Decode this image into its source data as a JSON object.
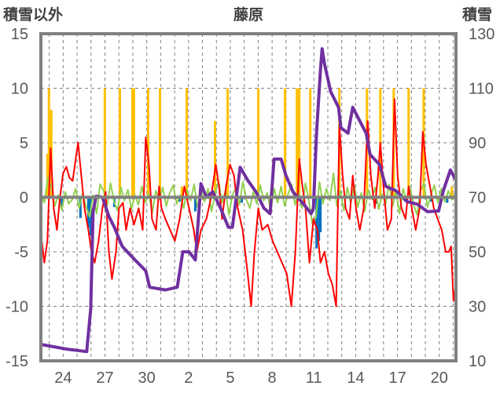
{
  "chart_data": {
    "type": "line",
    "title": "藤原",
    "left_axis_label": "積雪以外",
    "right_axis_label": "積雪",
    "ylim_left": [
      -15,
      15
    ],
    "yticks_left": [
      15,
      10,
      5,
      0,
      -5,
      -10,
      -15
    ],
    "ylim_right": [
      10,
      130
    ],
    "yticks_right": [
      130,
      110,
      90,
      70,
      50,
      30,
      10
    ],
    "xlim_days": [
      -1.6,
      28.2
    ],
    "xticks": [
      {
        "day": 0,
        "label": "24"
      },
      {
        "day": 3,
        "label": "27"
      },
      {
        "day": 6,
        "label": "30"
      },
      {
        "day": 9,
        "label": "2"
      },
      {
        "day": 12,
        "label": "5"
      },
      {
        "day": 15,
        "label": "8"
      },
      {
        "day": 18,
        "label": "11"
      },
      {
        "day": 21,
        "label": "14"
      },
      {
        "day": 24,
        "label": "17"
      },
      {
        "day": 27,
        "label": "20"
      }
    ],
    "grid": true,
    "colors": {
      "precip": "#FFC000",
      "snow_change": "#0070C0",
      "temp": "#FF0000",
      "other": "#92D050",
      "snow_depth": "#7030A0",
      "axis": "#808080"
    },
    "series": [
      {
        "name": "bars-yellow",
        "axis": "left",
        "kind": "bar",
        "color": "#FFC000",
        "points": [
          [
            -1.13,
            4
          ],
          [
            -1.02,
            10
          ],
          [
            -0.85,
            8
          ],
          [
            2.99,
            10
          ],
          [
            4.07,
            10
          ],
          [
            4.97,
            10
          ],
          [
            5.08,
            10
          ],
          [
            6.1,
            10
          ],
          [
            6.95,
            10
          ],
          [
            8.52,
            1
          ],
          [
            8.87,
            10
          ],
          [
            10.9,
            7
          ],
          [
            11.81,
            10
          ],
          [
            14.01,
            10
          ],
          [
            15.93,
            10
          ],
          [
            16.78,
            10
          ],
          [
            16.95,
            10
          ],
          [
            17.74,
            10
          ],
          [
            19.83,
            10
          ],
          [
            21.81,
            10
          ],
          [
            22.77,
            10
          ],
          [
            23.73,
            10
          ],
          [
            24.8,
            10
          ],
          [
            25.88,
            10
          ],
          [
            27.9,
            1
          ]
        ]
      },
      {
        "name": "bars-blue",
        "axis": "left",
        "kind": "bar",
        "color": "#0070C0",
        "points": [
          [
            -0.11,
            -0.9
          ],
          [
            1.24,
            -1.9
          ],
          [
            1.81,
            -2.8
          ],
          [
            1.98,
            -3.5
          ],
          [
            3.67,
            -0.9
          ],
          [
            8.36,
            -0.4
          ],
          [
            9.49,
            -1.3
          ],
          [
            12.82,
            -0.5
          ],
          [
            18.19,
            -4.7
          ],
          [
            18.36,
            -4
          ],
          [
            18.47,
            -3.2
          ],
          [
            20.62,
            -0.3
          ],
          [
            22.49,
            -0.6
          ],
          [
            26.38,
            -0.4
          ],
          [
            27.57,
            -0.5
          ]
        ]
      },
      {
        "name": "line-green",
        "axis": "left",
        "kind": "line",
        "color": "#92D050",
        "t0": -1.6,
        "step": 0.25,
        "values": [
          0.3,
          -0.5,
          1.8,
          1.0,
          -0.8,
          0.2,
          -1.2,
          0.5,
          -0.6,
          -0.2,
          0.8,
          -1.0,
          0.4,
          -0.9,
          -1.8,
          0.2,
          -1.5,
          1.2,
          0.6,
          -0.8,
          1.3,
          -0.4,
          -1.2,
          0.9,
          -0.3,
          0.7,
          -1.1,
          0.2,
          -0.7,
          1.0,
          -0.5,
          0.3,
          -1.4,
          0.6,
          -0.2,
          0.9,
          -0.8,
          0.4,
          1.1,
          -0.6,
          0.2,
          -1.0,
          0.7,
          -0.3,
          1.2,
          -0.9,
          0.5,
          -0.4,
          0.8,
          -1.3,
          0.3,
          1.5,
          -0.5,
          0.6,
          -1.6,
          0.2,
          0.9,
          -0.7,
          1.4,
          -0.2,
          -1.0,
          0.5,
          -0.6,
          1.1,
          -0.3,
          0.4,
          -1.2,
          0.8,
          -0.5,
          1.0,
          -0.8,
          0.3,
          1.2,
          -0.7,
          0.5,
          -1.0,
          1.3,
          -0.4,
          -2.5,
          -1.8,
          1.4,
          -0.6,
          0.8,
          -0.3,
          2.2,
          -0.8,
          0.6,
          -1.2,
          0.9,
          -0.5,
          1.1,
          -0.9,
          0.4,
          -1.3,
          0.7,
          -0.2,
          0.9,
          -1.1,
          0.3,
          -0.6,
          1.2,
          -0.8,
          0.5,
          -1.5,
          0.8,
          -0.3,
          1.0,
          -0.7,
          -1.6,
          0.6,
          1.3,
          -0.9,
          0.2,
          1.1,
          -0.5,
          0.8,
          -0.4,
          0.6,
          -0.2,
          0.4
        ]
      },
      {
        "name": "line-red",
        "axis": "left",
        "kind": "line",
        "color": "#FF0000",
        "points": [
          [
            -1.58,
            -3.5
          ],
          [
            -1.36,
            -6
          ],
          [
            -1.13,
            -4
          ],
          [
            -0.9,
            4.5
          ],
          [
            -0.68,
            -1
          ],
          [
            -0.45,
            -3
          ],
          [
            -0.23,
            0
          ],
          [
            0,
            2.2
          ],
          [
            0.23,
            2.8
          ],
          [
            0.45,
            1.8
          ],
          [
            0.68,
            1.5
          ],
          [
            0.9,
            3.5
          ],
          [
            1.07,
            5
          ],
          [
            1.3,
            2
          ],
          [
            1.53,
            -1
          ],
          [
            1.81,
            -3
          ],
          [
            2.03,
            -5
          ],
          [
            2.26,
            -6
          ],
          [
            2.54,
            -4
          ],
          [
            2.82,
            -1
          ],
          [
            3.05,
            0.5
          ],
          [
            3.28,
            -5
          ],
          [
            3.5,
            -7.5
          ],
          [
            3.79,
            -5
          ],
          [
            4.01,
            -1
          ],
          [
            4.29,
            -0.5
          ],
          [
            4.52,
            -3
          ],
          [
            4.8,
            -1
          ],
          [
            5.08,
            -2.5
          ],
          [
            5.42,
            -1
          ],
          [
            5.71,
            -3
          ],
          [
            5.93,
            5.5
          ],
          [
            6.16,
            3
          ],
          [
            6.38,
            -2
          ],
          [
            6.67,
            -3
          ],
          [
            6.89,
            1
          ],
          [
            7.06,
            -1
          ],
          [
            7.34,
            -2
          ],
          [
            7.68,
            -3
          ],
          [
            8.02,
            -4
          ],
          [
            8.36,
            -2
          ],
          [
            8.7,
            1
          ],
          [
            9.04,
            -1
          ],
          [
            9.38,
            -3
          ],
          [
            9.6,
            -5
          ],
          [
            9.89,
            -3
          ],
          [
            10.28,
            -2
          ],
          [
            10.62,
            0
          ],
          [
            10.96,
            3
          ],
          [
            11.19,
            1
          ],
          [
            11.41,
            -2
          ],
          [
            11.69,
            1
          ],
          [
            11.98,
            3
          ],
          [
            12.26,
            2
          ],
          [
            12.54,
            -1
          ],
          [
            12.88,
            -3
          ],
          [
            13.16,
            -6
          ],
          [
            13.5,
            -10
          ],
          [
            13.73,
            -5
          ],
          [
            14.01,
            -1
          ],
          [
            14.29,
            -3
          ],
          [
            14.69,
            -2.5
          ],
          [
            15.03,
            -4
          ],
          [
            15.37,
            -5
          ],
          [
            15.71,
            -6
          ],
          [
            16.05,
            -7
          ],
          [
            16.38,
            -10
          ],
          [
            16.67,
            -5
          ],
          [
            16.95,
            3.5
          ],
          [
            17.18,
            1
          ],
          [
            17.4,
            -1
          ],
          [
            17.68,
            -6
          ],
          [
            17.97,
            -2
          ],
          [
            18.25,
            -3
          ],
          [
            18.47,
            -6
          ],
          [
            18.76,
            -5
          ],
          [
            19.04,
            -7
          ],
          [
            19.32,
            -8
          ],
          [
            19.6,
            -10
          ],
          [
            19.83,
            6.7
          ],
          [
            20.06,
            2
          ],
          [
            20.28,
            -1
          ],
          [
            20.56,
            -2
          ],
          [
            20.79,
            2
          ],
          [
            21.02,
            -1
          ],
          [
            21.3,
            -3
          ],
          [
            21.58,
            -1
          ],
          [
            21.86,
            7
          ],
          [
            22.09,
            2
          ],
          [
            22.37,
            -1
          ],
          [
            22.6,
            2
          ],
          [
            22.77,
            5
          ],
          [
            22.99,
            1
          ],
          [
            23.28,
            -3
          ],
          [
            23.56,
            -2
          ],
          [
            23.79,
            9
          ],
          [
            24.01,
            2
          ],
          [
            24.29,
            -1
          ],
          [
            24.58,
            -2
          ],
          [
            24.8,
            1
          ],
          [
            25.03,
            -1
          ],
          [
            25.31,
            -3
          ],
          [
            25.59,
            -1
          ],
          [
            25.82,
            6
          ],
          [
            26.05,
            3
          ],
          [
            26.33,
            1
          ],
          [
            26.61,
            -1
          ],
          [
            26.89,
            -2
          ],
          [
            27.18,
            -3
          ],
          [
            27.46,
            -5
          ],
          [
            27.68,
            -5
          ],
          [
            27.85,
            -4.5
          ],
          [
            28.02,
            -9.5
          ],
          [
            28.19,
            -8
          ]
        ]
      },
      {
        "name": "line-purple",
        "axis": "right",
        "kind": "line",
        "color": "#7030A0",
        "points": [
          [
            -1.58,
            16
          ],
          [
            0.28,
            14.3
          ],
          [
            1.69,
            13.4
          ],
          [
            1.81,
            20
          ],
          [
            1.98,
            29
          ],
          [
            2.15,
            64.7
          ],
          [
            2.37,
            70.4
          ],
          [
            2.82,
            70
          ],
          [
            3.28,
            63
          ],
          [
            3.67,
            59
          ],
          [
            4.24,
            52
          ],
          [
            5.08,
            47.4
          ],
          [
            5.93,
            43
          ],
          [
            6.21,
            37
          ],
          [
            6.78,
            36.5
          ],
          [
            7.34,
            36
          ],
          [
            8.19,
            37
          ],
          [
            8.59,
            50
          ],
          [
            9.04,
            50
          ],
          [
            9.49,
            47
          ],
          [
            9.89,
            75
          ],
          [
            10.28,
            70
          ],
          [
            10.73,
            72
          ],
          [
            11.3,
            66
          ],
          [
            11.86,
            59
          ],
          [
            12.15,
            59
          ],
          [
            12.43,
            70
          ],
          [
            12.71,
            81
          ],
          [
            13.28,
            76
          ],
          [
            13.84,
            72
          ],
          [
            14.41,
            66
          ],
          [
            14.86,
            64
          ],
          [
            15.14,
            84
          ],
          [
            15.65,
            84
          ],
          [
            15.99,
            78
          ],
          [
            16.5,
            72
          ],
          [
            17.34,
            67
          ],
          [
            17.8,
            64
          ],
          [
            17.97,
            66
          ],
          [
            18.19,
            93.5
          ],
          [
            18.47,
            116.5
          ],
          [
            18.59,
            124.5
          ],
          [
            18.76,
            119
          ],
          [
            19.21,
            108.7
          ],
          [
            19.77,
            103
          ],
          [
            19.94,
            95.5
          ],
          [
            20.45,
            93.5
          ],
          [
            20.79,
            103
          ],
          [
            21.19,
            99
          ],
          [
            21.75,
            93.5
          ],
          [
            22.03,
            85.7
          ],
          [
            22.71,
            82
          ],
          [
            23.16,
            74
          ],
          [
            23.9,
            72.4
          ],
          [
            24.69,
            68.4
          ],
          [
            25.42,
            67.5
          ],
          [
            26.16,
            64.7
          ],
          [
            26.95,
            65
          ],
          [
            27.29,
            72.4
          ],
          [
            27.8,
            80
          ],
          [
            28.14,
            76.8
          ]
        ]
      }
    ]
  }
}
